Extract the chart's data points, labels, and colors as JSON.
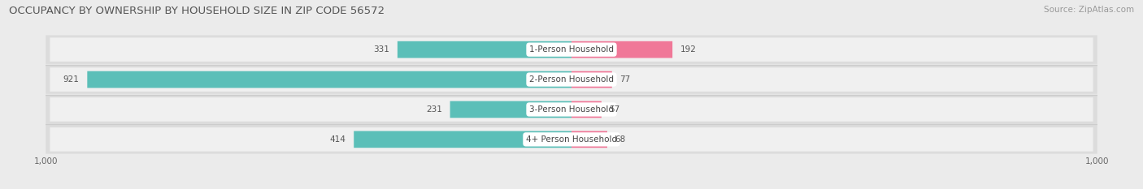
{
  "title": "OCCUPANCY BY OWNERSHIP BY HOUSEHOLD SIZE IN ZIP CODE 56572",
  "source": "Source: ZipAtlas.com",
  "categories": [
    "1-Person Household",
    "2-Person Household",
    "3-Person Household",
    "4+ Person Household"
  ],
  "owner_values": [
    331,
    921,
    231,
    414
  ],
  "renter_values": [
    192,
    77,
    57,
    68
  ],
  "owner_color": "#5BBFB8",
  "renter_color": "#F07898",
  "renter_color_light": "#F5A8C0",
  "background_color": "#EBEBEB",
  "row_bg_color": "#E0E0E0",
  "row_bg_light": "#F5F5F5",
  "label_bg_color": "#FFFFFF",
  "x_max": 1000,
  "bar_height": 0.52,
  "title_fontsize": 9.5,
  "source_fontsize": 7.5,
  "label_fontsize": 7.5,
  "value_fontsize": 7.5,
  "axis_label_fontsize": 7.5,
  "legend_fontsize": 8
}
